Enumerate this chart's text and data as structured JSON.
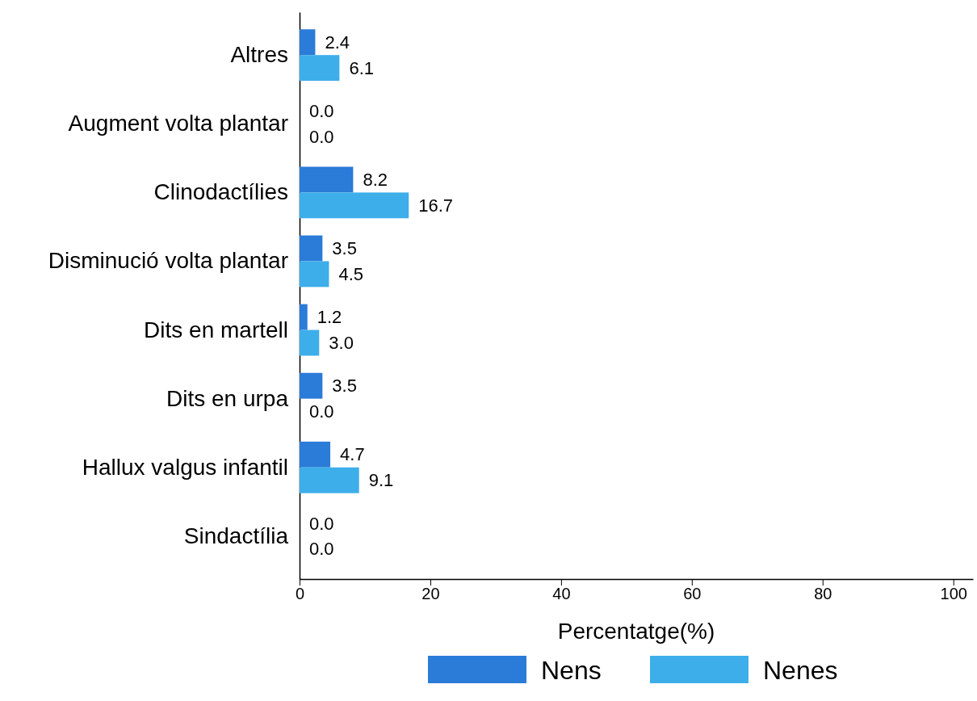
{
  "chart_data": {
    "type": "bar",
    "orientation": "horizontal",
    "xlabel": "Percentatge(%)",
    "categories": [
      "Altres",
      "Augment volta plantar",
      "Clinodactílies",
      "Disminució volta plantar",
      "Dits en martell",
      "Dits en urpa",
      "Hallux valgus infantil",
      "Sindactília"
    ],
    "series": [
      {
        "name": "Nens",
        "color": "#2b7bd8",
        "values": [
          2.4,
          0,
          8.2,
          3.5,
          1.2,
          3.5,
          4.7,
          0
        ],
        "value_labels": [
          "2.4",
          "0.0",
          "8.2",
          "3.5",
          "1.2",
          "3.5",
          "4.7",
          "0.0"
        ]
      },
      {
        "name": "Nenes",
        "color": "#3daeea",
        "values": [
          6.1,
          0,
          16.7,
          4.5,
          3.0,
          0,
          9.1,
          0
        ],
        "value_labels": [
          "6.1",
          "0.0",
          "16.7",
          "4.5",
          "3.0",
          "0.0",
          "9.1",
          "0.0"
        ]
      }
    ],
    "xlim": [
      0,
      103
    ],
    "xticks": [
      0,
      20,
      40,
      60,
      80,
      100
    ],
    "grid": false,
    "legend": "bottom"
  }
}
